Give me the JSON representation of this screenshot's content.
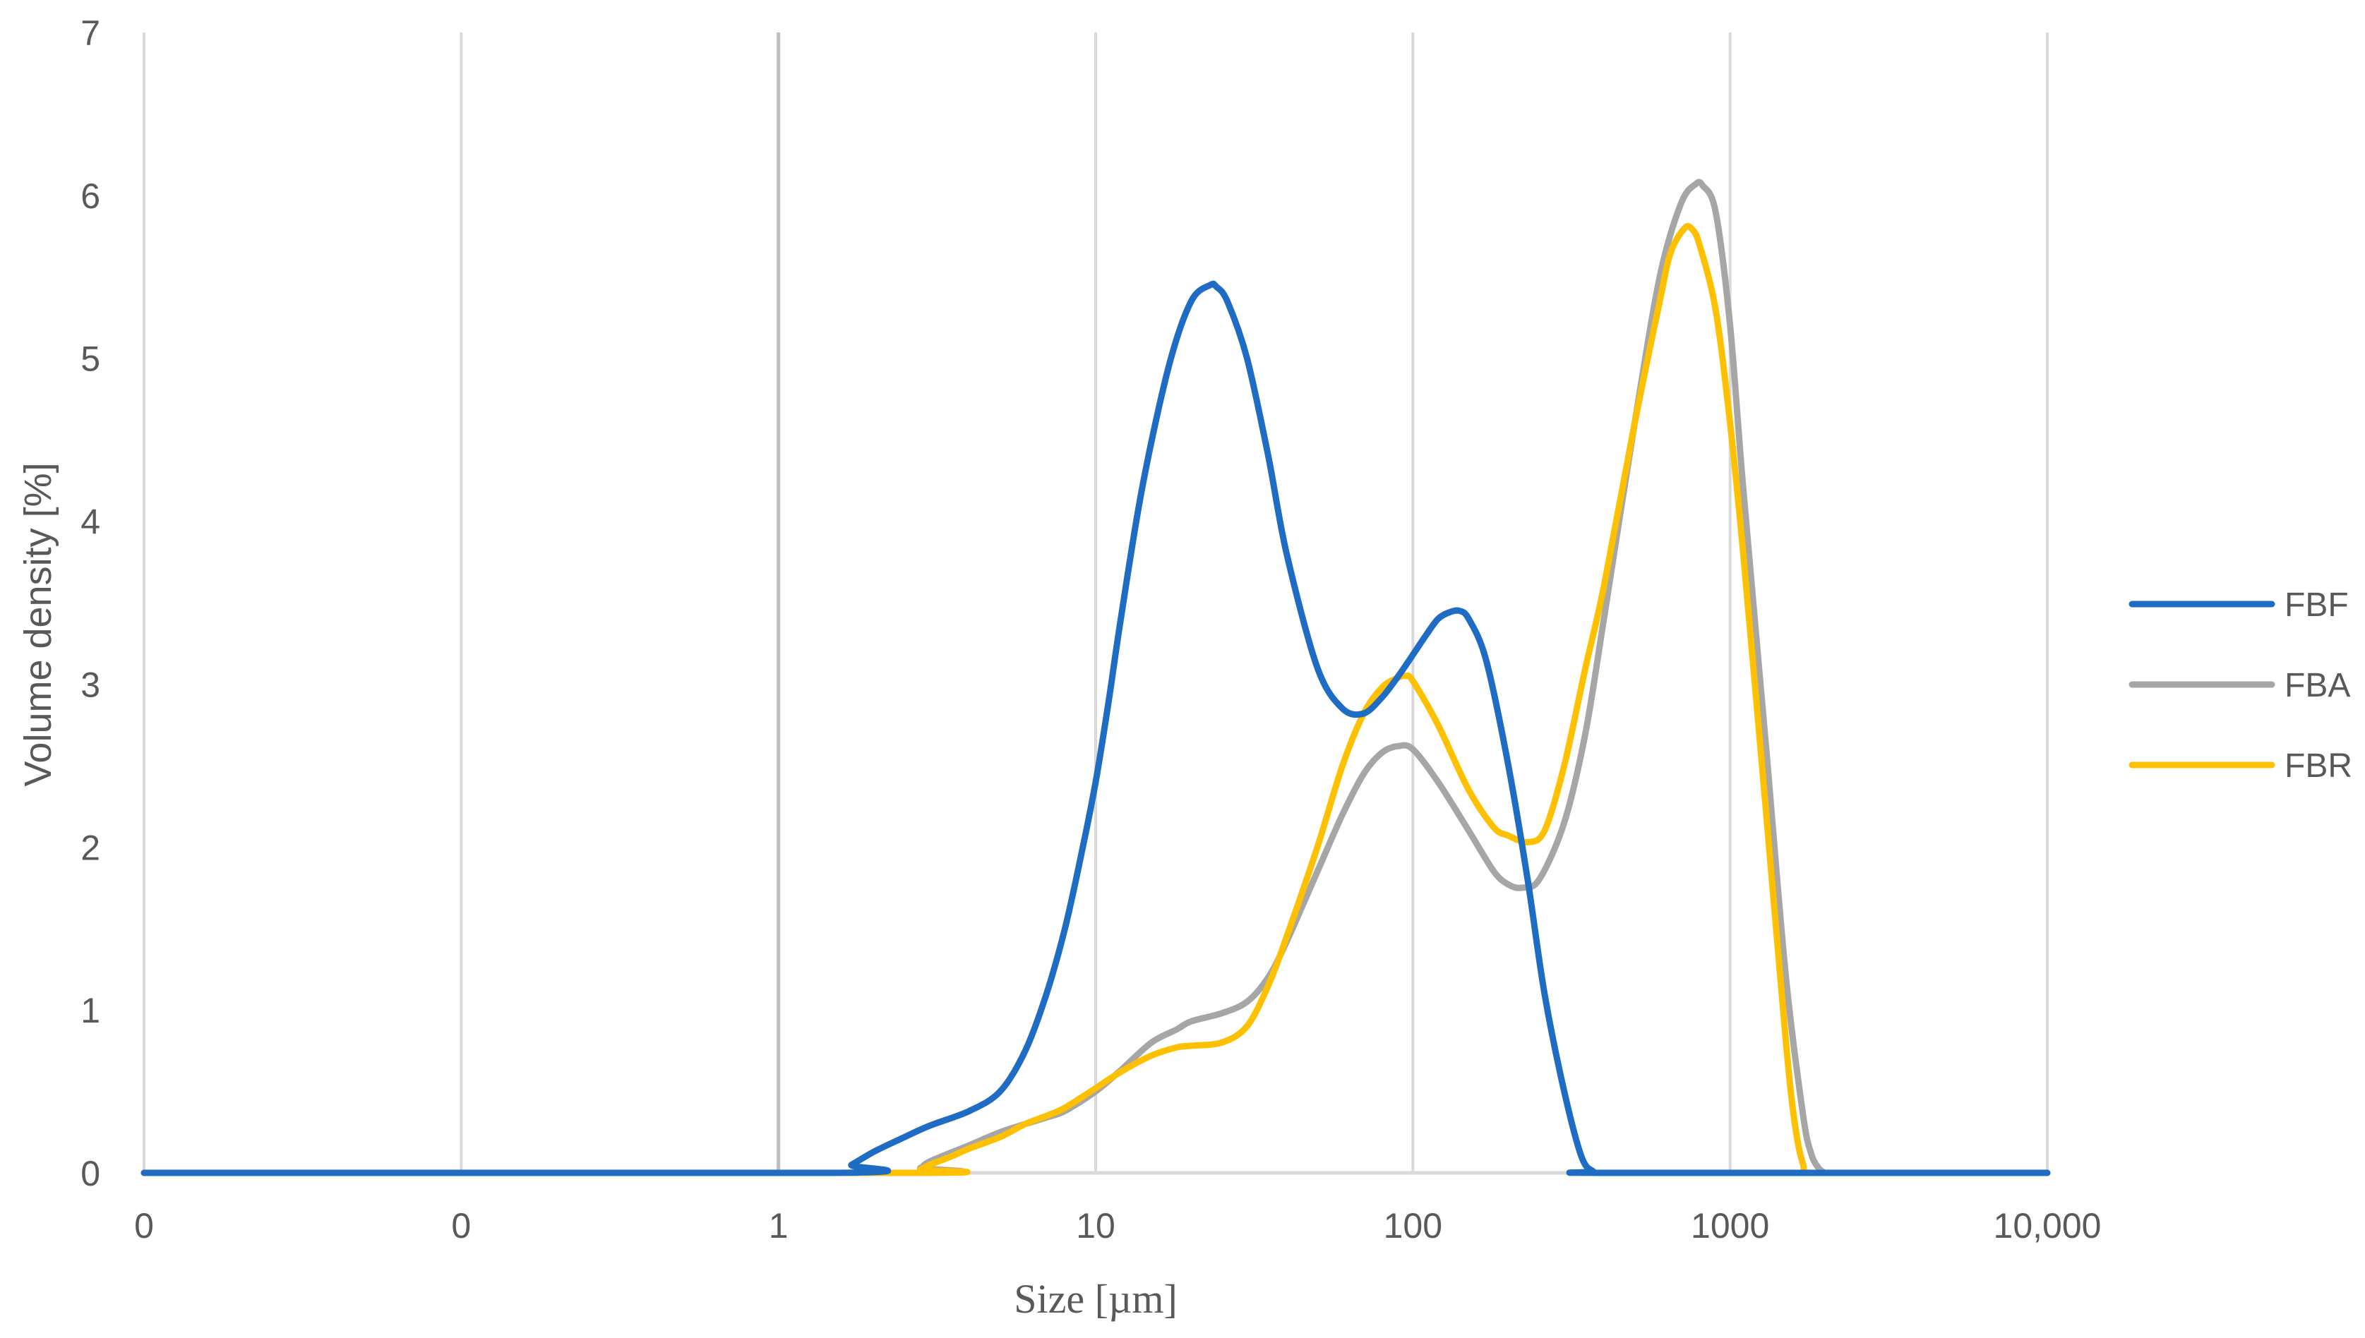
{
  "chart_data": {
    "type": "line",
    "title": "",
    "xlabel": "Size [µm]",
    "ylabel": "Volume density [%]",
    "x_scale": "log",
    "xlim": [
      0.01,
      10000
    ],
    "ylim": [
      0,
      7
    ],
    "x_tick_labels": [
      "0",
      "0",
      "1",
      "10",
      "100",
      "1000",
      "10,000"
    ],
    "y_tick_labels": [
      "0",
      "1",
      "2",
      "3",
      "4",
      "5",
      "6",
      "7"
    ],
    "grid": "vertical",
    "legend_position": "right",
    "series": [
      {
        "name": "FBF",
        "color": "#1f6cc4",
        "x": [
          0.01,
          1.5,
          1.7,
          2.0,
          2.5,
          3.0,
          4.0,
          5.0,
          6.0,
          7.0,
          8.0,
          9.0,
          10.0,
          11.0,
          12.0,
          14.0,
          17.0,
          20.0,
          23.0,
          24.0,
          26.0,
          30.0,
          35.0,
          40.0,
          50.0,
          60.0,
          70.0,
          80.0,
          90.0,
          100.0,
          110.0,
          120.0,
          130.0,
          140.0,
          150.0,
          170.0,
          200.0,
          230.0,
          260.0,
          300.0,
          340.0,
          370.0,
          400.0,
          10000.0
        ],
        "y": [
          0,
          0,
          0.05,
          0.13,
          0.22,
          0.29,
          0.38,
          0.5,
          0.75,
          1.1,
          1.5,
          1.95,
          2.4,
          2.9,
          3.4,
          4.2,
          4.95,
          5.35,
          5.45,
          5.44,
          5.35,
          5.0,
          4.4,
          3.8,
          3.1,
          2.85,
          2.82,
          2.92,
          3.05,
          3.18,
          3.3,
          3.4,
          3.44,
          3.45,
          3.4,
          3.15,
          2.5,
          1.8,
          1.1,
          0.5,
          0.1,
          0.01,
          0,
          0
        ]
      },
      {
        "name": "FBA",
        "color": "#a6a6a6",
        "x": [
          0.01,
          2.5,
          2.8,
          3.0,
          4.0,
          5.0,
          6.0,
          7.0,
          8.0,
          10.0,
          12.0,
          15.0,
          18.0,
          20.0,
          25.0,
          30.0,
          35.0,
          40.0,
          50.0,
          60.0,
          70.0,
          80.0,
          90.0,
          100.0,
          120.0,
          150.0,
          180.0,
          200.0,
          220.0,
          250.0,
          300.0,
          350.0,
          400.0,
          500.0,
          600.0,
          700.0,
          780.0,
          820.0,
          900.0,
          1000.0,
          1100.0,
          1300.0,
          1500.0,
          1700.0,
          1800.0,
          1900.0,
          2000.0,
          2100.0,
          10000.0
        ],
        "y": [
          0,
          0,
          0.03,
          0.07,
          0.17,
          0.25,
          0.3,
          0.34,
          0.38,
          0.5,
          0.63,
          0.8,
          0.88,
          0.93,
          0.98,
          1.05,
          1.2,
          1.42,
          1.85,
          2.2,
          2.45,
          2.58,
          2.62,
          2.6,
          2.4,
          2.1,
          1.85,
          1.77,
          1.75,
          1.8,
          2.15,
          2.7,
          3.4,
          4.6,
          5.5,
          5.95,
          6.07,
          6.06,
          5.9,
          5.2,
          4.2,
          2.6,
          1.2,
          0.35,
          0.12,
          0.03,
          0,
          0,
          0
        ]
      },
      {
        "name": "FBR",
        "color": "#ffc000",
        "x": [
          0.01,
          2.6,
          2.8,
          3.0,
          3.5,
          4.0,
          5.0,
          6.0,
          7.0,
          8.0,
          10.0,
          12.0,
          15.0,
          18.0,
          20.0,
          25.0,
          30.0,
          35.0,
          40.0,
          50.0,
          60.0,
          70.0,
          80.0,
          90.0,
          95.0,
          100.0,
          120.0,
          150.0,
          180.0,
          200.0,
          230.0,
          260.0,
          300.0,
          350.0,
          400.0,
          500.0,
          600.0,
          650.0,
          720.0,
          760.0,
          800.0,
          900.0,
          1000.0,
          1100.0,
          1300.0,
          1500.0,
          1600.0,
          1700.0,
          1800.0,
          3000.0,
          10000.0
        ],
        "y": [
          0,
          0,
          0.02,
          0.05,
          0.1,
          0.15,
          0.22,
          0.3,
          0.35,
          0.4,
          0.52,
          0.62,
          0.72,
          0.77,
          0.78,
          0.8,
          0.9,
          1.15,
          1.45,
          2.0,
          2.5,
          2.82,
          2.98,
          3.04,
          3.05,
          3.02,
          2.75,
          2.35,
          2.12,
          2.07,
          2.03,
          2.1,
          2.5,
          3.1,
          3.6,
          4.6,
          5.35,
          5.65,
          5.8,
          5.79,
          5.7,
          5.3,
          4.6,
          3.8,
          2.2,
          0.8,
          0.3,
          0.05,
          0,
          0,
          0
        ]
      }
    ]
  }
}
